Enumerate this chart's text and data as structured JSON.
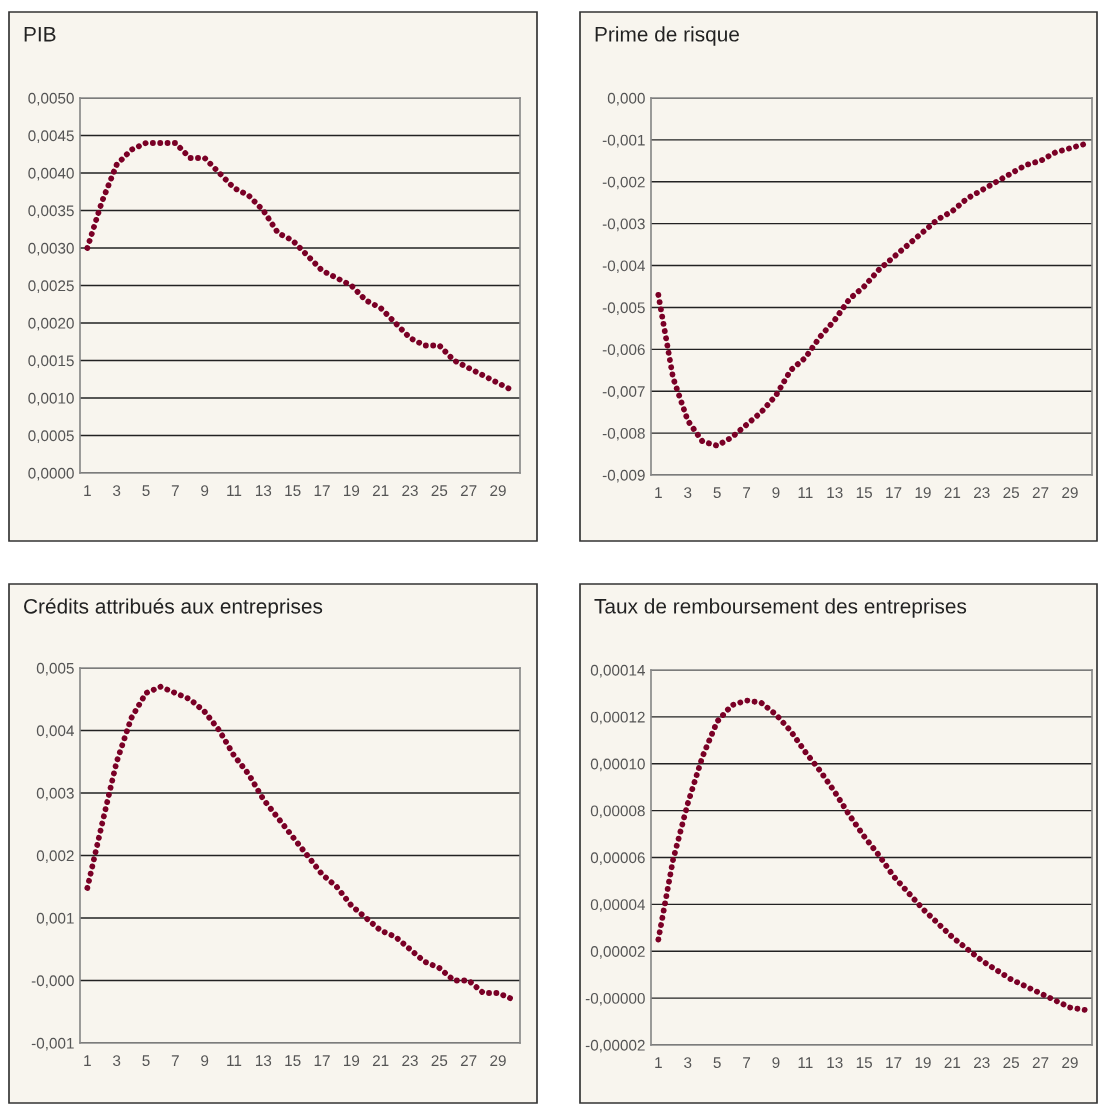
{
  "chart_data": [
    {
      "type": "line",
      "title": "PIB",
      "x": [
        1,
        2,
        3,
        4,
        5,
        6,
        7,
        8,
        9,
        10,
        11,
        12,
        13,
        14,
        15,
        16,
        17,
        18,
        19,
        20,
        21,
        22,
        23,
        24,
        25,
        26,
        27,
        28,
        29,
        30
      ],
      "series": [
        {
          "color": "#7a0026",
          "values": [
            0.003,
            0.00362,
            0.00411,
            0.00431,
            0.0044,
            0.0044,
            0.0044,
            0.0042,
            0.0042,
            0.004,
            0.0038,
            0.0037,
            0.0035,
            0.0032,
            0.0031,
            0.0029,
            0.0027,
            0.0026,
            0.0025,
            0.0023,
            0.0022,
            0.002,
            0.0018,
            0.0017,
            0.0017,
            0.0015,
            0.0014,
            0.0013,
            0.0012,
            0.0011
          ]
        }
      ],
      "xlim": [
        0.5,
        30.5
      ],
      "xticks": [
        1,
        3,
        5,
        7,
        9,
        11,
        13,
        15,
        17,
        19,
        21,
        23,
        25,
        27,
        29
      ],
      "ylim": [
        0,
        0.005
      ],
      "yticks": [
        {
          "value": 0,
          "label": "0,0000"
        },
        {
          "value": 0.0005,
          "label": "0,0005"
        },
        {
          "value": 0.001,
          "label": "0,0010"
        },
        {
          "value": 0.0015,
          "label": "0,0015"
        },
        {
          "value": 0.002,
          "label": "0,0020"
        },
        {
          "value": 0.0025,
          "label": "0,0025"
        },
        {
          "value": 0.003,
          "label": "0,0030"
        },
        {
          "value": 0.0035,
          "label": "0,0035"
        },
        {
          "value": 0.004,
          "label": "0,0040"
        },
        {
          "value": 0.0045,
          "label": "0,0045"
        },
        {
          "value": 0.005,
          "label": "0,0050"
        }
      ],
      "grid": "y",
      "line_style": "dotted"
    },
    {
      "type": "line",
      "title": "Prime de risque",
      "x": [
        1,
        2,
        3,
        4,
        5,
        6,
        7,
        8,
        9,
        10,
        11,
        12,
        13,
        14,
        15,
        16,
        17,
        18,
        19,
        20,
        21,
        22,
        23,
        24,
        25,
        26,
        27,
        28,
        29,
        30
      ],
      "series": [
        {
          "color": "#7a0026",
          "values": [
            -0.0047,
            -0.00668,
            -0.0077,
            -0.0082,
            -0.0083,
            -0.0081,
            -0.0078,
            -0.0075,
            -0.0071,
            -0.0065,
            -0.0062,
            -0.0057,
            -0.0053,
            -0.0048,
            -0.0045,
            -0.0041,
            -0.0038,
            -0.0035,
            -0.0032,
            -0.0029,
            -0.0027,
            -0.0024,
            -0.0022,
            -0.002,
            -0.0018,
            -0.0016,
            -0.0015,
            -0.0013,
            -0.0012,
            -0.0011
          ]
        }
      ],
      "xlim": [
        0.5,
        30.5
      ],
      "xticks": [
        1,
        3,
        5,
        7,
        9,
        11,
        13,
        15,
        17,
        19,
        21,
        23,
        25,
        27,
        29
      ],
      "ylim": [
        -0.009,
        0
      ],
      "yticks": [
        {
          "value": -0.009,
          "label": "-0,009"
        },
        {
          "value": -0.008,
          "label": "-0,008"
        },
        {
          "value": -0.007,
          "label": "-0,007"
        },
        {
          "value": -0.006,
          "label": "-0,006"
        },
        {
          "value": -0.005,
          "label": "-0,005"
        },
        {
          "value": -0.004,
          "label": "-0,004"
        },
        {
          "value": -0.003,
          "label": "-0,003"
        },
        {
          "value": -0.002,
          "label": "-0,002"
        },
        {
          "value": -0.001,
          "label": "-0,001"
        },
        {
          "value": 0,
          "label": "0,000"
        }
      ],
      "grid": "y",
      "line_style": "dotted"
    },
    {
      "type": "line",
      "title": "Crédits attribués aux entreprises",
      "x": [
        1,
        2,
        3,
        4,
        5,
        6,
        7,
        8,
        9,
        10,
        11,
        12,
        13,
        14,
        15,
        16,
        17,
        18,
        19,
        20,
        21,
        22,
        23,
        24,
        25,
        26,
        27,
        28,
        29,
        30
      ],
      "series": [
        {
          "color": "#7a0026",
          "values": [
            0.00148,
            0.0025,
            0.0035,
            0.0042,
            0.0046,
            0.0047,
            0.0046,
            0.0045,
            0.0043,
            0.004,
            0.0036,
            0.0033,
            0.0029,
            0.0026,
            0.0023,
            0.002,
            0.0017,
            0.0015,
            0.0012,
            0.001,
            0.0008,
            0.0007,
            0.0005,
            0.0003,
            0.0002,
            0.0,
            0.0,
            -0.0002,
            -0.0002,
            -0.0003
          ]
        }
      ],
      "xlim": [
        0.5,
        30.5
      ],
      "xticks": [
        1,
        3,
        5,
        7,
        9,
        11,
        13,
        15,
        17,
        19,
        21,
        23,
        25,
        27,
        29
      ],
      "ylim": [
        -0.001,
        0.005
      ],
      "yticks": [
        {
          "value": -0.001,
          "label": "-0,001"
        },
        {
          "value": 0,
          "label": "-0,000"
        },
        {
          "value": 0.001,
          "label": "0,001"
        },
        {
          "value": 0.002,
          "label": "0,002"
        },
        {
          "value": 0.003,
          "label": "0,003"
        },
        {
          "value": 0.004,
          "label": "0,004"
        },
        {
          "value": 0.005,
          "label": "0,005"
        }
      ],
      "grid": "y",
      "line_style": "dotted"
    },
    {
      "type": "line",
      "title": "Taux de remboursement des entreprises",
      "x": [
        1,
        2,
        3,
        4,
        5,
        6,
        7,
        8,
        9,
        10,
        11,
        12,
        13,
        14,
        15,
        16,
        17,
        18,
        19,
        20,
        21,
        22,
        23,
        24,
        25,
        26,
        27,
        28,
        29,
        30
      ],
      "series": [
        {
          "color": "#7a0026",
          "values": [
            2.5e-05,
            5.9e-05,
            8.3e-05,
            0.000103,
            0.000118,
            0.000125,
            0.000127,
            0.000126,
            0.000121,
            0.000114,
            0.000105,
            9.7e-05,
            8.8e-05,
            7.8e-05,
            6.9e-05,
            6.1e-05,
            5.2e-05,
            4.5e-05,
            3.8e-05,
            3.2e-05,
            2.6e-05,
            2.1e-05,
            1.6e-05,
            1.2e-05,
            8e-06,
            5e-06,
            2e-06,
            -1e-06,
            -4e-06,
            -5e-06
          ]
        }
      ],
      "xlim": [
        0.5,
        30.5
      ],
      "xticks": [
        1,
        3,
        5,
        7,
        9,
        11,
        13,
        15,
        17,
        19,
        21,
        23,
        25,
        27,
        29
      ],
      "ylim": [
        -2e-05,
        0.00014
      ],
      "yticks": [
        {
          "value": -2e-05,
          "label": "-0,00002"
        },
        {
          "value": 0,
          "label": "-0,00000"
        },
        {
          "value": 2e-05,
          "label": "0,00002"
        },
        {
          "value": 4e-05,
          "label": "0,00004"
        },
        {
          "value": 6e-05,
          "label": "0,00006"
        },
        {
          "value": 8e-05,
          "label": "0,00008"
        },
        {
          "value": 0.0001,
          "label": "0,00010"
        },
        {
          "value": 0.00012,
          "label": "0,00012"
        },
        {
          "value": 0.00014,
          "label": "0,00014"
        }
      ],
      "grid": "y",
      "line_style": "dotted"
    }
  ]
}
